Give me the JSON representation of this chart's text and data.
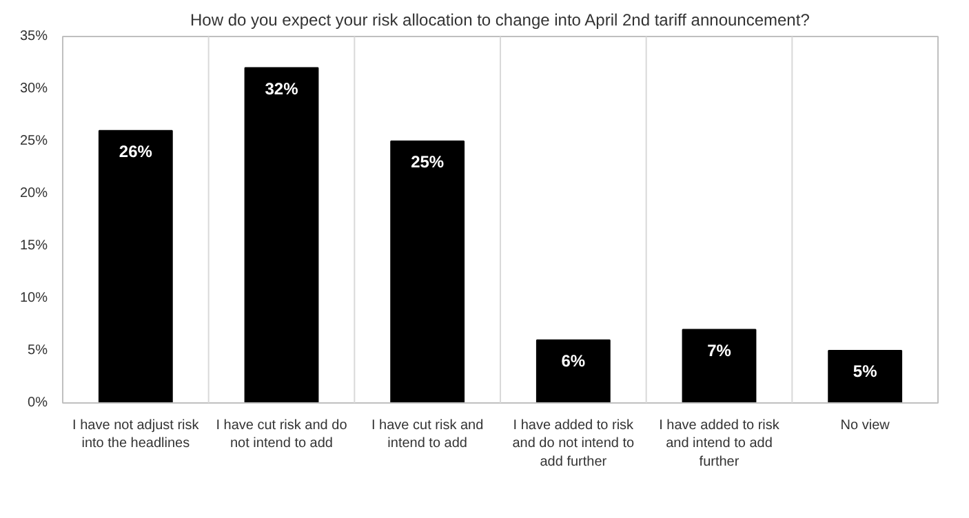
{
  "chart_data": {
    "type": "bar",
    "title": "How do you expect your risk allocation to change into April 2nd tariff announcement?",
    "categories": [
      "I have not adjust risk into the headlines",
      "I have cut risk and do not intend to add",
      "I have cut risk and intend to add",
      "I have added to risk and do not intend to add further",
      "I have added to risk and intend to add further",
      "No view"
    ],
    "values": [
      26,
      32,
      25,
      6,
      7,
      5
    ],
    "value_labels": [
      "26%",
      "32%",
      "25%",
      "6%",
      "7%",
      "5%"
    ],
    "color": "#000000",
    "ylim": [
      0,
      35
    ],
    "yticks": [
      {
        "value": 0,
        "label": "0%"
      },
      {
        "value": 5,
        "label": "5%"
      },
      {
        "value": 10,
        "label": "10%"
      },
      {
        "value": 15,
        "label": "15%"
      },
      {
        "value": 20,
        "label": "20%"
      },
      {
        "value": 25,
        "label": "25%"
      },
      {
        "value": 30,
        "label": "30%"
      },
      {
        "value": 35,
        "label": "35%"
      }
    ],
    "grid": "x"
  }
}
